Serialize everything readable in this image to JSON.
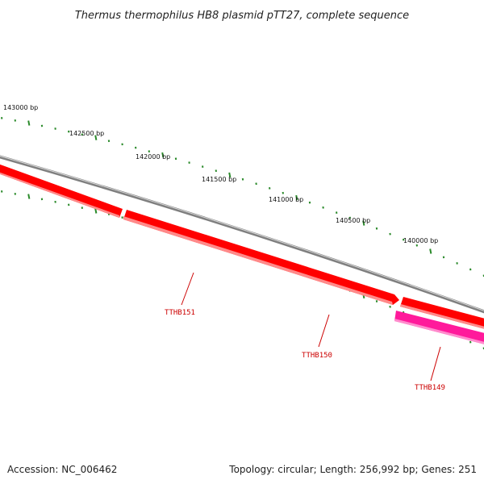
{
  "title": "Thermus thermophilus HB8 plasmid pTT27, complete sequence",
  "footer": {
    "accession": "Accession: NC_006462",
    "summary": "Topology: circular; Length: 256,992 bp; Genes: 251"
  },
  "colors": {
    "backbone": "#7f7f7f",
    "gene_forward": "#ff0000",
    "gene_forward_dark": "#cc0000",
    "gene_pink": "#ff1a9b",
    "gene_pink_dark": "#d10a7f",
    "ticks": "#2a8a2a",
    "label_line": "#cc0000"
  },
  "scale_labels": [
    "143000 bp",
    "142500 bp",
    "142000 bp",
    "141500 bp",
    "141000 bp",
    "140500 bp",
    "140000 bp"
  ],
  "genes": [
    {
      "name": "TTHB151"
    },
    {
      "name": "TTHB150"
    },
    {
      "name": "TTHB149"
    }
  ]
}
